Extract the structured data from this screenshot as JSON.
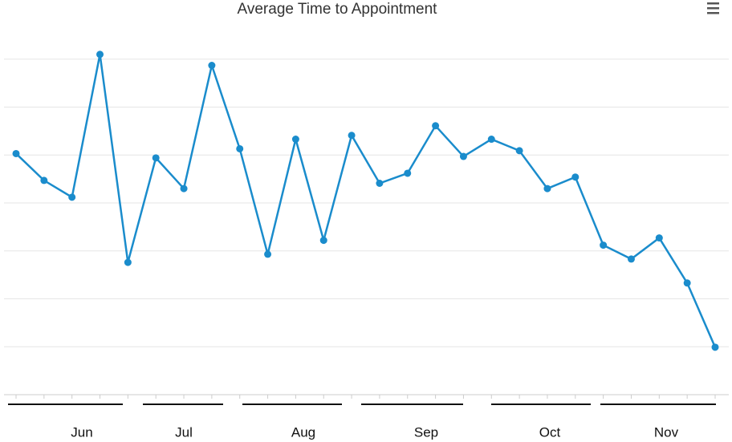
{
  "chart_data": {
    "type": "line",
    "title": "Average Time to Appointment",
    "categories": [
      null,
      null,
      null,
      null,
      null,
      null,
      null,
      null,
      null,
      null,
      null,
      null,
      null,
      null,
      null,
      null,
      null,
      null,
      null,
      null,
      null,
      null,
      null,
      null,
      null,
      null
    ],
    "month_groups": [
      "Jun",
      "Jul",
      "Aug",
      "Sep",
      "Oct",
      "Nov"
    ],
    "series": [
      {
        "color": "#1a8ccc",
        "values": [
          5.03,
          4.47,
          4.12,
          7.1,
          2.76,
          4.94,
          4.3,
          6.87,
          5.13,
          2.93,
          5.33,
          3.22,
          5.41,
          4.41,
          4.62,
          5.61,
          4.97,
          5.33,
          5.09,
          4.3,
          4.54,
          3.12,
          2.83,
          3.27,
          2.33,
          0.99
        ]
      }
    ],
    "ylim": [
      0,
      8
    ],
    "gridlines": [
      1,
      2,
      3,
      4,
      5,
      6,
      7
    ],
    "grid": true
  }
}
